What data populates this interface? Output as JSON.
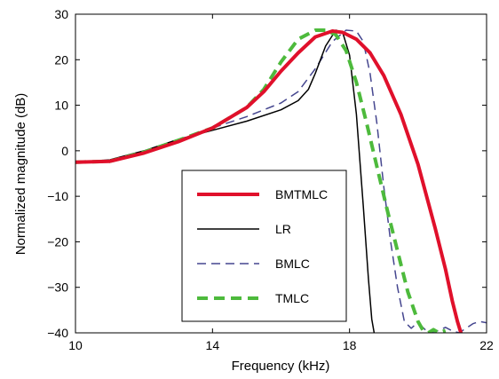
{
  "chart_data": {
    "type": "line",
    "title": "",
    "xlabel": "Frequency (kHz)",
    "ylabel": "Normalized magnitude (dB)",
    "xlim": [
      10,
      22
    ],
    "ylim": [
      -40,
      30
    ],
    "xticks": [
      10,
      14,
      18,
      22
    ],
    "yticks": [
      -40,
      -30,
      -20,
      -10,
      0,
      10,
      20,
      30
    ],
    "grid": false,
    "legend_position": "lower-center",
    "series": [
      {
        "name": "BMTMLC",
        "color": "#e0102b",
        "style": "solid-thick",
        "x": [
          10,
          11,
          12,
          13,
          14,
          15,
          15.5,
          16,
          16.5,
          17,
          17.5,
          17.8,
          18.2,
          18.6,
          19,
          19.5,
          20,
          20.5,
          20.8,
          21,
          21.15,
          21.25
        ],
        "y": [
          -2.5,
          -2.3,
          -0.5,
          2.0,
          5.0,
          9.5,
          13.0,
          17.5,
          21.5,
          25.0,
          26.3,
          26.0,
          24.5,
          21.5,
          16.5,
          8.0,
          -3.0,
          -17.0,
          -26.0,
          -33.0,
          -37.5,
          -40.0
        ]
      },
      {
        "name": "LR",
        "color": "#000000",
        "style": "solid-thin",
        "x": [
          10,
          11,
          12,
          13,
          14,
          15,
          16,
          16.5,
          16.8,
          17,
          17.3,
          17.6,
          17.8,
          18,
          18.2,
          18.4,
          18.55,
          18.65,
          18.72
        ],
        "y": [
          -2.5,
          -2.0,
          0.0,
          2.5,
          4.5,
          6.5,
          9.0,
          11.0,
          13.5,
          17.0,
          23.0,
          26.5,
          26.0,
          21.0,
          8.0,
          -12.0,
          -28.0,
          -37.0,
          -40.0
        ]
      },
      {
        "name": "BMLC",
        "color": "#45468f",
        "style": "dashed-thin",
        "x": [
          10,
          11,
          12,
          13,
          14,
          15,
          16,
          16.5,
          17,
          17.5,
          17.9,
          18.2,
          18.4,
          18.6,
          18.8,
          19,
          19.2,
          19.4,
          19.6,
          19.8,
          19.95,
          20.1,
          20.3,
          20.6,
          20.8,
          21,
          21.2,
          21.4,
          21.6,
          21.8,
          22
        ],
        "y": [
          -2.5,
          -2.2,
          -0.3,
          2.3,
          5.0,
          7.5,
          10.5,
          13.0,
          18.0,
          24.0,
          26.5,
          26.3,
          24.0,
          17.0,
          6.0,
          -8.0,
          -20.0,
          -30.0,
          -37.5,
          -39.0,
          -38.0,
          -38.5,
          -40.0,
          -39.5,
          -38.8,
          -39.6,
          -40.0,
          -39.0,
          -38.0,
          -37.5,
          -37.8
        ]
      },
      {
        "name": "TMLC",
        "color": "#4dba3c",
        "style": "dashed-thick",
        "x": [
          10,
          11,
          12,
          13,
          14,
          15,
          15.5,
          16,
          16.5,
          17,
          17.3,
          17.6,
          17.9,
          18.2,
          18.5,
          18.8,
          19.1,
          19.4,
          19.7,
          20,
          20.15,
          20.3,
          20.45,
          20.6,
          20.8
        ],
        "y": [
          -2.5,
          -2.3,
          -0.3,
          2.3,
          5.0,
          9.5,
          13.5,
          19.5,
          24.5,
          26.5,
          26.5,
          25.5,
          22.0,
          15.0,
          6.0,
          -3.5,
          -13.0,
          -22.0,
          -31.0,
          -37.5,
          -39.5,
          -40.0,
          -39.3,
          -40.0,
          -39.5
        ]
      }
    ]
  }
}
